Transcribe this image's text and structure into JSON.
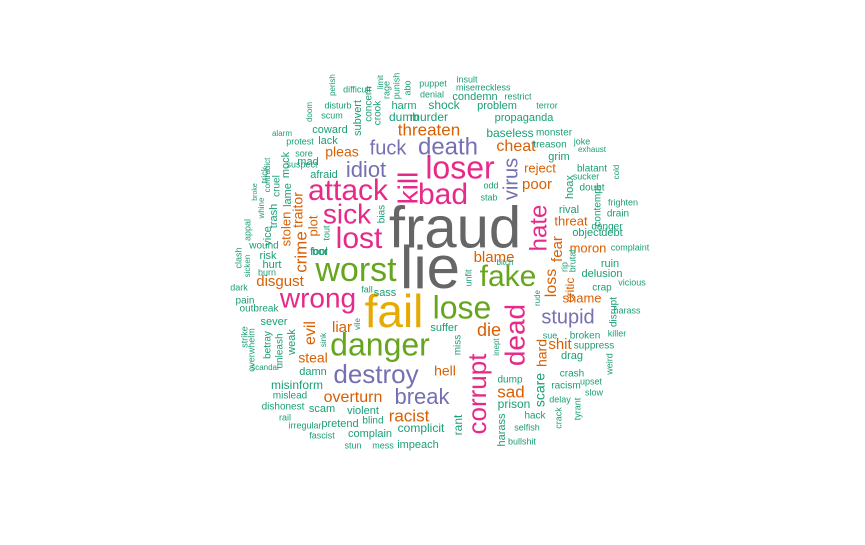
{
  "palette": {
    "teal": "#1b9e77",
    "orange": "#d95f02",
    "purple": "#7570b3",
    "pink": "#e7298a",
    "green": "#66a61e",
    "gold": "#e6ab02",
    "gray": "#666666"
  },
  "words": [
    {
      "text": "fraud",
      "color": "gray"
    },
    {
      "text": "lie",
      "color": "gray"
    },
    {
      "text": "fail",
      "color": "gold"
    },
    {
      "text": "danger",
      "color": "green"
    },
    {
      "text": "worst",
      "color": "green"
    },
    {
      "text": "lose",
      "color": "green"
    },
    {
      "text": "fake",
      "color": "green"
    },
    {
      "text": "attack",
      "color": "pink"
    },
    {
      "text": "kill",
      "color": "pink"
    },
    {
      "text": "loser",
      "color": "pink"
    },
    {
      "text": "bad",
      "color": "pink"
    },
    {
      "text": "lost",
      "color": "pink"
    },
    {
      "text": "sick",
      "color": "pink"
    },
    {
      "text": "wrong",
      "color": "pink"
    },
    {
      "text": "dead",
      "color": "pink"
    },
    {
      "text": "corrupt",
      "color": "pink"
    },
    {
      "text": "hate",
      "color": "pink"
    },
    {
      "text": "death",
      "color": "purple"
    },
    {
      "text": "destroy",
      "color": "purple"
    },
    {
      "text": "break",
      "color": "purple"
    },
    {
      "text": "idiot",
      "color": "purple"
    },
    {
      "text": "fuck",
      "color": "purple"
    },
    {
      "text": "virus",
      "color": "purple"
    },
    {
      "text": "stupid",
      "color": "purple"
    },
    {
      "text": "threaten",
      "color": "orange"
    },
    {
      "text": "cheat",
      "color": "orange"
    },
    {
      "text": "pleas",
      "color": "orange"
    },
    {
      "text": "poor",
      "color": "orange"
    },
    {
      "text": "reject",
      "color": "orange"
    },
    {
      "text": "crime",
      "color": "orange"
    },
    {
      "text": "traitor",
      "color": "orange"
    },
    {
      "text": "plot",
      "color": "orange"
    },
    {
      "text": "disgust",
      "color": "orange"
    },
    {
      "text": "blame",
      "color": "orange"
    },
    {
      "text": "evil",
      "color": "orange"
    },
    {
      "text": "liar",
      "color": "orange"
    },
    {
      "text": "die",
      "color": "orange"
    },
    {
      "text": "steal",
      "color": "orange"
    },
    {
      "text": "hell",
      "color": "orange"
    },
    {
      "text": "overturn",
      "color": "orange"
    },
    {
      "text": "racist",
      "color": "orange"
    },
    {
      "text": "sad",
      "color": "orange"
    },
    {
      "text": "loss",
      "color": "orange"
    },
    {
      "text": "fear",
      "color": "orange"
    },
    {
      "text": "threat",
      "color": "orange"
    },
    {
      "text": "moron",
      "color": "orange"
    },
    {
      "text": "shame",
      "color": "orange"
    },
    {
      "text": "shit",
      "color": "orange"
    },
    {
      "text": "hard",
      "color": "orange"
    },
    {
      "text": "stolen",
      "color": "orange"
    },
    {
      "text": "critic",
      "color": "orange"
    },
    {
      "text": "murder",
      "color": "teal"
    },
    {
      "text": "shock",
      "color": "teal"
    },
    {
      "text": "harm",
      "color": "teal"
    },
    {
      "text": "dumb",
      "color": "teal"
    },
    {
      "text": "condemn",
      "color": "teal"
    },
    {
      "text": "problem",
      "color": "teal"
    },
    {
      "text": "propaganda",
      "color": "teal"
    },
    {
      "text": "baseless",
      "color": "teal"
    },
    {
      "text": "coward",
      "color": "teal"
    },
    {
      "text": "lack",
      "color": "teal"
    },
    {
      "text": "mad",
      "color": "teal"
    },
    {
      "text": "afraid",
      "color": "teal"
    },
    {
      "text": "fool",
      "color": "teal"
    },
    {
      "text": "risk",
      "color": "teal"
    },
    {
      "text": "hurt",
      "color": "teal"
    },
    {
      "text": "vice",
      "color": "teal"
    },
    {
      "text": "trash",
      "color": "teal"
    },
    {
      "text": "lame",
      "color": "teal"
    },
    {
      "text": "mock",
      "color": "teal"
    },
    {
      "text": "cruel",
      "color": "teal"
    },
    {
      "text": "sever",
      "color": "teal"
    },
    {
      "text": "weak",
      "color": "teal"
    },
    {
      "text": "betray",
      "color": "teal"
    },
    {
      "text": "unleash",
      "color": "teal"
    },
    {
      "text": "damn",
      "color": "teal"
    },
    {
      "text": "misinform",
      "color": "teal"
    },
    {
      "text": "mislead",
      "color": "teal"
    },
    {
      "text": "dishonest",
      "color": "teal"
    },
    {
      "text": "scam",
      "color": "teal"
    },
    {
      "text": "pretend",
      "color": "teal"
    },
    {
      "text": "violent",
      "color": "teal"
    },
    {
      "text": "complain",
      "color": "teal"
    },
    {
      "text": "complicit",
      "color": "teal"
    },
    {
      "text": "impeach",
      "color": "teal"
    },
    {
      "text": "blind",
      "color": "teal"
    },
    {
      "text": "suffer",
      "color": "teal"
    },
    {
      "text": "miss",
      "color": "teal"
    },
    {
      "text": "rant",
      "color": "teal"
    },
    {
      "text": "harass",
      "color": "teal"
    },
    {
      "text": "prison",
      "color": "teal"
    },
    {
      "text": "dump",
      "color": "teal"
    },
    {
      "text": "scare",
      "color": "teal"
    },
    {
      "text": "hack",
      "color": "teal"
    },
    {
      "text": "selfish",
      "color": "teal"
    },
    {
      "text": "bullshit",
      "color": "teal"
    },
    {
      "text": "crash",
      "color": "teal"
    },
    {
      "text": "racism",
      "color": "teal"
    },
    {
      "text": "delay",
      "color": "teal"
    },
    {
      "text": "drag",
      "color": "teal"
    },
    {
      "text": "suppress",
      "color": "teal"
    },
    {
      "text": "broken",
      "color": "teal"
    },
    {
      "text": "sue",
      "color": "teal"
    },
    {
      "text": "delusion",
      "color": "teal"
    },
    {
      "text": "crap",
      "color": "teal"
    },
    {
      "text": "ruin",
      "color": "teal"
    },
    {
      "text": "object",
      "color": "teal"
    },
    {
      "text": "debt",
      "color": "teal"
    },
    {
      "text": "danger",
      "color": "teal"
    },
    {
      "text": "rival",
      "color": "teal"
    },
    {
      "text": "hoax",
      "color": "teal"
    },
    {
      "text": "doubt",
      "color": "teal"
    },
    {
      "text": "blatant",
      "color": "teal"
    },
    {
      "text": "sucker",
      "color": "teal"
    },
    {
      "text": "grim",
      "color": "teal"
    },
    {
      "text": "treason",
      "color": "teal"
    },
    {
      "text": "joke",
      "color": "teal"
    },
    {
      "text": "exhaust",
      "color": "teal"
    },
    {
      "text": "monster",
      "color": "teal"
    },
    {
      "text": "terror",
      "color": "teal"
    },
    {
      "text": "restrict",
      "color": "teal"
    },
    {
      "text": "reckless",
      "color": "teal"
    },
    {
      "text": "miser",
      "color": "teal"
    },
    {
      "text": "insult",
      "color": "teal"
    },
    {
      "text": "puppet",
      "color": "teal"
    },
    {
      "text": "denial",
      "color": "teal"
    },
    {
      "text": "difficult",
      "color": "teal"
    },
    {
      "text": "disturb",
      "color": "teal"
    },
    {
      "text": "scum",
      "color": "teal"
    },
    {
      "text": "perish",
      "color": "teal"
    },
    {
      "text": "doom",
      "color": "teal"
    },
    {
      "text": "subvert",
      "color": "teal"
    },
    {
      "text": "concern",
      "color": "teal"
    },
    {
      "text": "crook",
      "color": "teal"
    },
    {
      "text": "protest",
      "color": "teal"
    },
    {
      "text": "sore",
      "color": "teal"
    },
    {
      "text": "alarm",
      "color": "teal"
    },
    {
      "text": "suspect",
      "color": "teal"
    },
    {
      "text": "trick",
      "color": "teal"
    },
    {
      "text": "whine",
      "color": "teal"
    },
    {
      "text": "broke",
      "color": "teal"
    },
    {
      "text": "contradict",
      "color": "teal"
    },
    {
      "text": "appal",
      "color": "teal"
    },
    {
      "text": "wound",
      "color": "teal"
    },
    {
      "text": "clash",
      "color": "teal"
    },
    {
      "text": "sicken",
      "color": "teal"
    },
    {
      "text": "burn",
      "color": "teal"
    },
    {
      "text": "dark",
      "color": "teal"
    },
    {
      "text": "pain",
      "color": "teal"
    },
    {
      "text": "outbreak",
      "color": "teal"
    },
    {
      "text": "strike",
      "color": "teal"
    },
    {
      "text": "overwhelm",
      "color": "teal"
    },
    {
      "text": "scandal",
      "color": "teal"
    },
    {
      "text": "rail",
      "color": "teal"
    },
    {
      "text": "irregular",
      "color": "teal"
    },
    {
      "text": "fascist",
      "color": "teal"
    },
    {
      "text": "stun",
      "color": "teal"
    },
    {
      "text": "mess",
      "color": "teal"
    },
    {
      "text": "inept",
      "color": "teal"
    },
    {
      "text": "sink",
      "color": "teal"
    },
    {
      "text": "sass",
      "color": "teal"
    },
    {
      "text": "fall",
      "color": "teal"
    },
    {
      "text": "vile",
      "color": "teal"
    },
    {
      "text": "tout",
      "color": "teal"
    },
    {
      "text": "bias",
      "color": "teal"
    },
    {
      "text": "odd",
      "color": "teal"
    },
    {
      "text": "stab",
      "color": "teal"
    },
    {
      "text": "unfit",
      "color": "teal"
    },
    {
      "text": "bitch",
      "color": "teal"
    },
    {
      "text": "rude",
      "color": "teal"
    },
    {
      "text": "rip",
      "color": "teal"
    },
    {
      "text": "brutal",
      "color": "teal"
    },
    {
      "text": "drain",
      "color": "teal"
    },
    {
      "text": "frighten",
      "color": "teal"
    },
    {
      "text": "contempt",
      "color": "teal"
    },
    {
      "text": "cold",
      "color": "teal"
    },
    {
      "text": "complaint",
      "color": "teal"
    },
    {
      "text": "vicious",
      "color": "teal"
    },
    {
      "text": "disrupt",
      "color": "teal"
    },
    {
      "text": "harass",
      "color": "teal"
    },
    {
      "text": "killer",
      "color": "teal"
    },
    {
      "text": "weird",
      "color": "teal"
    },
    {
      "text": "upset",
      "color": "teal"
    },
    {
      "text": "slow",
      "color": "teal"
    },
    {
      "text": "tyrant",
      "color": "teal"
    },
    {
      "text": "crack",
      "color": "teal"
    },
    {
      "text": "punish",
      "color": "teal"
    },
    {
      "text": "rage",
      "color": "teal"
    },
    {
      "text": "limit",
      "color": "teal"
    },
    {
      "text": "abo",
      "color": "teal"
    },
    {
      "text": "bor",
      "color": "teal"
    },
    {
      "text": "fool",
      "color": "teal"
    }
  ]
}
